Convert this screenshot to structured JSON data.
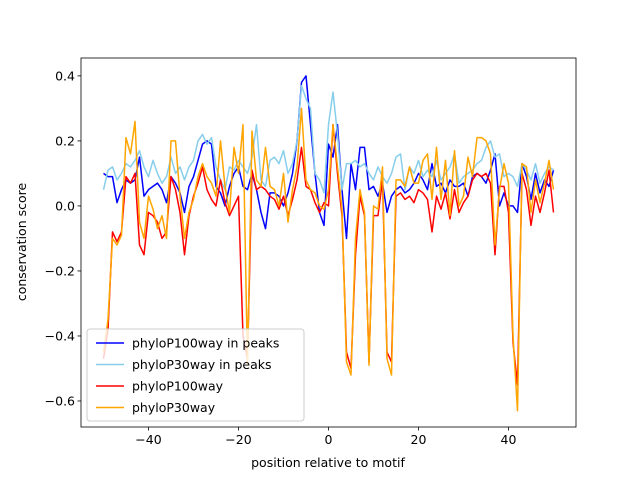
{
  "chart_data": {
    "type": "line",
    "xlabel": "position relative to motif",
    "ylabel": "conservation score",
    "x": [
      -50,
      -49,
      -48,
      -47,
      -46,
      -45,
      -44,
      -43,
      -42,
      -41,
      -40,
      -39,
      -38,
      -37,
      -36,
      -35,
      -34,
      -33,
      -32,
      -31,
      -30,
      -29,
      -28,
      -27,
      -26,
      -25,
      -24,
      -23,
      -22,
      -21,
      -20,
      -19,
      -18,
      -17,
      -16,
      -15,
      -14,
      -13,
      -12,
      -11,
      -10,
      -9,
      -8,
      -7,
      -6,
      -5,
      -4,
      -3,
      -2,
      -1,
      0,
      1,
      2,
      3,
      4,
      5,
      6,
      7,
      8,
      9,
      10,
      11,
      12,
      13,
      14,
      15,
      16,
      17,
      18,
      19,
      20,
      21,
      22,
      23,
      24,
      25,
      26,
      27,
      28,
      29,
      30,
      31,
      32,
      33,
      34,
      35,
      36,
      37,
      38,
      39,
      40,
      41,
      42,
      43,
      44,
      45,
      46,
      47,
      48,
      49,
      50
    ],
    "series": [
      {
        "name": "phyloP100way in peaks",
        "color": "#0000ff",
        "values": [
          0.1,
          0.09,
          0.09,
          0.01,
          0.05,
          0.08,
          0.07,
          0.08,
          0.15,
          0.03,
          0.05,
          0.06,
          0.07,
          0.05,
          0.01,
          0.09,
          0.07,
          0.04,
          -0.02,
          0.06,
          0.09,
          0.14,
          0.19,
          0.2,
          0.19,
          0.06,
          0.04,
          0.0,
          0.06,
          0.1,
          0.12,
          0.06,
          0.05,
          0.1,
          0.05,
          -0.02,
          -0.07,
          0.04,
          0.04,
          0.03,
          0.0,
          0.04,
          0.1,
          0.2,
          0.38,
          0.4,
          0.25,
          0.1,
          -0.02,
          -0.06,
          0.19,
          0.15,
          0.25,
          0.05,
          -0.1,
          0.13,
          0.05,
          0.18,
          0.18,
          0.05,
          0.06,
          0.03,
          0.07,
          -0.02,
          0.03,
          0.05,
          0.06,
          0.04,
          0.05,
          0.07,
          0.1,
          0.08,
          0.05,
          0.13,
          0.06,
          0.07,
          0.04,
          0.08,
          0.06,
          0.06,
          0.07,
          0.03,
          0.09,
          0.1,
          0.09,
          0.07,
          0.11,
          0.16,
          0.0,
          0.04,
          0.0,
          0.0,
          -0.02,
          0.13,
          0.09,
          0.02,
          0.1,
          0.04,
          0.08,
          0.06,
          0.11
        ]
      },
      {
        "name": "phyloP30way in peaks",
        "color": "#87ceeb",
        "values": [
          0.05,
          0.11,
          0.12,
          0.08,
          0.1,
          0.13,
          0.12,
          0.14,
          0.17,
          0.12,
          0.09,
          0.14,
          0.1,
          0.07,
          0.09,
          0.15,
          0.1,
          0.12,
          0.08,
          0.12,
          0.14,
          0.2,
          0.22,
          0.19,
          0.21,
          0.12,
          0.08,
          0.05,
          0.12,
          0.11,
          0.14,
          0.12,
          0.1,
          0.15,
          0.25,
          0.08,
          0.06,
          0.14,
          0.15,
          0.13,
          0.17,
          0.1,
          0.13,
          0.2,
          0.37,
          0.33,
          0.3,
          0.1,
          0.08,
          0.04,
          0.25,
          0.35,
          0.22,
          0.05,
          0.13,
          0.13,
          0.14,
          0.12,
          0.13,
          0.1,
          0.08,
          0.12,
          0.09,
          0.07,
          0.1,
          0.15,
          0.16,
          0.05,
          0.12,
          0.1,
          0.14,
          0.09,
          0.11,
          0.09,
          0.14,
          0.08,
          0.1,
          0.12,
          0.16,
          0.07,
          0.09,
          0.1,
          0.11,
          0.13,
          0.14,
          0.18,
          0.2,
          0.15,
          0.16,
          0.09,
          0.1,
          0.09,
          0.06,
          0.13,
          0.11,
          0.08,
          0.13,
          0.07,
          0.1,
          0.12,
          0.11
        ]
      },
      {
        "name": "phyloP100way",
        "color": "#ff0000",
        "values": [
          -0.47,
          -0.38,
          -0.08,
          -0.11,
          -0.08,
          0.09,
          0.07,
          0.1,
          -0.12,
          -0.15,
          -0.02,
          -0.03,
          -0.05,
          -0.1,
          -0.08,
          0.09,
          0.05,
          -0.02,
          -0.15,
          -0.03,
          0.03,
          0.07,
          0.12,
          0.05,
          0.02,
          0.0,
          0.08,
          0.01,
          -0.03,
          0.0,
          0.03,
          -0.4,
          -0.47,
          0.11,
          0.05,
          0.06,
          0.05,
          0.03,
          0.02,
          -0.01,
          0.03,
          -0.03,
          0.02,
          0.08,
          0.18,
          0.06,
          0.05,
          0.01,
          -0.02,
          0.01,
          0.0,
          0.25,
          0.1,
          -0.03,
          -0.45,
          -0.5,
          -0.15,
          0.03,
          -0.03,
          -0.48,
          -0.03,
          -0.03,
          0.08,
          -0.45,
          -0.48,
          0.03,
          0.04,
          0.02,
          0.03,
          0.01,
          0.05,
          0.04,
          0.02,
          -0.08,
          0.03,
          -0.01,
          0.04,
          -0.04,
          0.05,
          -0.02,
          0.01,
          0.03,
          0.08,
          0.1,
          0.09,
          0.1,
          0.07,
          -0.15,
          0.06,
          0.06,
          -0.02,
          -0.42,
          -0.55,
          0.1,
          0.05,
          -0.06,
          0.03,
          -0.02,
          0.04,
          0.11,
          -0.02
        ]
      },
      {
        "name": "phyloP30way",
        "color": "#ffa500",
        "values": [
          -0.45,
          -0.35,
          -0.1,
          -0.12,
          -0.09,
          0.21,
          0.16,
          0.26,
          -0.05,
          -0.1,
          0.03,
          -0.01,
          -0.07,
          -0.03,
          -0.1,
          0.2,
          0.2,
          0.03,
          -0.1,
          -0.02,
          0.02,
          0.09,
          0.13,
          0.09,
          0.07,
          0.03,
          0.2,
          0.06,
          -0.02,
          0.18,
          0.1,
          0.25,
          -0.49,
          0.23,
          0.08,
          0.06,
          0.18,
          0.06,
          0.05,
          0.0,
          0.1,
          -0.05,
          0.05,
          0.12,
          0.3,
          0.08,
          0.05,
          0.04,
          0.0,
          -0.01,
          0.05,
          0.25,
          0.12,
          -0.01,
          -0.48,
          -0.52,
          -0.1,
          0.05,
          -0.02,
          -0.49,
          0.0,
          -0.01,
          0.12,
          -0.47,
          -0.52,
          0.08,
          0.08,
          0.06,
          0.12,
          0.07,
          0.07,
          0.14,
          0.16,
          0.02,
          0.18,
          0.02,
          0.14,
          -0.03,
          0.17,
          0.0,
          0.03,
          0.15,
          0.09,
          0.21,
          0.21,
          0.2,
          0.16,
          -0.12,
          0.05,
          0.13,
          0.07,
          -0.4,
          -0.63,
          0.13,
          0.12,
          -0.02,
          0.08,
          0.01,
          0.07,
          0.14,
          0.05
        ]
      }
    ],
    "xlim": [
      -55,
      55
    ],
    "xticks": [
      {
        "value": -40,
        "label": "−40"
      },
      {
        "value": -20,
        "label": "−20"
      },
      0,
      20,
      40
    ],
    "ylim": [
      -0.68,
      0.455
    ],
    "yticks": [
      {
        "value": -0.6,
        "label": "−0.6"
      },
      {
        "value": -0.4,
        "label": "−0.4"
      },
      {
        "value": -0.2,
        "label": "−0.2"
      },
      {
        "value": 0,
        "label": "0.0"
      },
      0.2,
      0.4
    ],
    "legend": "lower left"
  }
}
